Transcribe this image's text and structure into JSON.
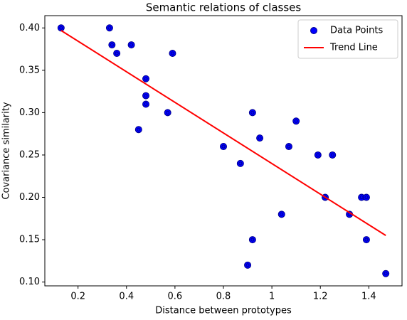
{
  "chart_data": {
    "type": "scatter",
    "title": "Semantic relations of classes",
    "x_label": "Distance between prototypes",
    "y_label": "Covariance similarity",
    "xlim": [
      0.063,
      1.537
    ],
    "ylim": [
      0.0955,
      0.4145
    ],
    "xticks": [
      0.2,
      0.4,
      0.6,
      0.8,
      1.0,
      1.2,
      1.4
    ],
    "yticks": [
      {
        "value": 0.1,
        "label": "0.10"
      },
      {
        "value": 0.15,
        "label": "0.15"
      },
      {
        "value": 0.2,
        "label": "0.20"
      },
      {
        "value": 0.25,
        "label": "0.25"
      },
      {
        "value": 0.3,
        "label": "0.30"
      },
      {
        "value": 0.35,
        "label": "0.35"
      },
      {
        "value": 0.4,
        "label": "0.40"
      }
    ],
    "legend": "upper right",
    "series": [
      {
        "name": "Data Points",
        "color": "#0000ff",
        "kind": "points",
        "x": [
          0.13,
          0.33,
          0.34,
          0.36,
          0.42,
          0.59,
          0.48,
          0.48,
          0.48,
          0.45,
          0.57,
          0.8,
          0.87,
          0.92,
          0.95,
          1.07,
          1.1,
          1.19,
          1.25,
          1.22,
          1.04,
          0.92,
          0.9,
          1.32,
          1.37,
          1.39,
          1.39,
          1.47
        ],
        "values": [
          0.4,
          0.4,
          0.38,
          0.37,
          0.38,
          0.37,
          0.34,
          0.32,
          0.31,
          0.28,
          0.3,
          0.26,
          0.24,
          0.3,
          0.27,
          0.26,
          0.29,
          0.25,
          0.25,
          0.2,
          0.18,
          0.15,
          0.12,
          0.18,
          0.2,
          0.2,
          0.15,
          0.11
        ]
      },
      {
        "name": "Trend Line",
        "color": "#ff0000",
        "kind": "line",
        "x": [
          0.13,
          1.47
        ],
        "values": [
          0.397,
          0.155
        ]
      }
    ]
  }
}
